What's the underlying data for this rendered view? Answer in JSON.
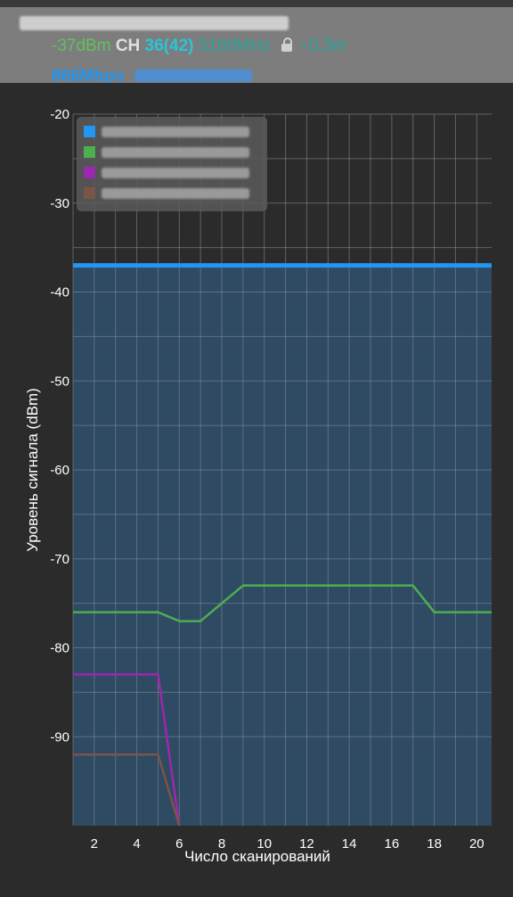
{
  "header": {
    "signal": "-37dBm",
    "ch_label": "CH",
    "channel": "36(42)",
    "frequency": "5180MHz",
    "distance": "~0,3m",
    "speed": "866Mbps",
    "colors": {
      "signal": "#5ec35e",
      "ch_label": "#e0e0e0",
      "channel": "#26c6da",
      "frequency": "#26a69a",
      "distance": "#26a69a",
      "speed": "#2196f3"
    },
    "lock_icon": "lock-icon"
  },
  "chart_data": {
    "type": "line",
    "xlabel": "Число сканирований",
    "ylabel": "Уровень сигнала (dBm)",
    "xlim": [
      1,
      20.7
    ],
    "ylim": [
      -100,
      -20
    ],
    "x_ticks": [
      2,
      4,
      6,
      8,
      10,
      12,
      14,
      16,
      18,
      20
    ],
    "y_ticks": [
      -20,
      -30,
      -40,
      -50,
      -60,
      -70,
      -80,
      -90
    ],
    "grid": true,
    "legend_position": "top-left",
    "series": [
      {
        "color": "#2196f3",
        "fill": true,
        "x": [
          1,
          20.7
        ],
        "y": [
          -37,
          -37
        ]
      },
      {
        "color": "#4caf50",
        "x": [
          1,
          2,
          3,
          4,
          5,
          6,
          7,
          8,
          9,
          10,
          11,
          12,
          13,
          14,
          15,
          16,
          17,
          18,
          19,
          20,
          20.7
        ],
        "y": [
          -76,
          -76,
          -76,
          -76,
          -76,
          -77,
          -77,
          -75,
          -73,
          -73,
          -73,
          -73,
          -73,
          -73,
          -73,
          -73,
          -73,
          -76,
          -76,
          -76,
          -76
        ]
      },
      {
        "color": "#9c27b0",
        "x": [
          1,
          2,
          3,
          4,
          5,
          6
        ],
        "y": [
          -83,
          -83,
          -83,
          -83,
          -83,
          -100
        ]
      },
      {
        "color": "#795548",
        "x": [
          1,
          2,
          3,
          4,
          5,
          6
        ],
        "y": [
          -92,
          -92,
          -92,
          -92,
          -92,
          -100
        ]
      }
    ]
  }
}
